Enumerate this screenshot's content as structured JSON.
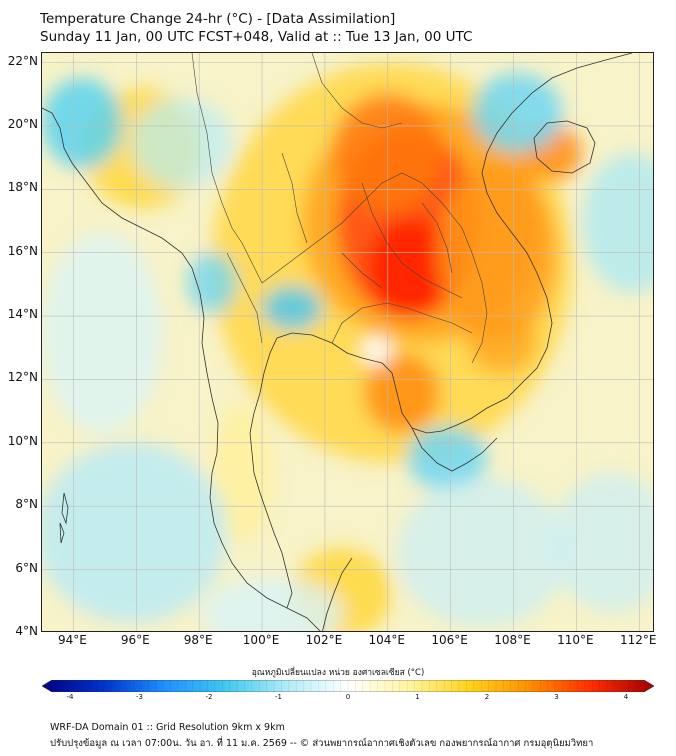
{
  "title": {
    "line1": "Temperature Change 24-hr (°C) - [Data Assimilation]",
    "line2": "Sunday 11 Jan, 00 UTC FCST+048, Valid at :: Tue 13 Jan, 00 UTC"
  },
  "map": {
    "lat_ticks": [
      "22°N",
      "20°N",
      "18°N",
      "16°N",
      "14°N",
      "12°N",
      "10°N",
      "8°N",
      "6°N",
      "4°N"
    ],
    "lon_ticks": [
      "94°E",
      "96°E",
      "98°E",
      "100°E",
      "102°E",
      "104°E",
      "106°E",
      "108°E",
      "110°E",
      "112°E"
    ],
    "lat_range": [
      4,
      22.3
    ],
    "lon_range": [
      93,
      112.5
    ],
    "background_color": "#f8f3c8"
  },
  "colorbar": {
    "title": "อุณหภูมิเปลี่ยนแปลง หน่วย องศาเซลเซียส (°C)",
    "ticks": [
      "-4",
      "-3",
      "-2",
      "-1",
      "0",
      "1",
      "2",
      "3",
      "4"
    ],
    "colors": [
      "#000080",
      "#0033cc",
      "#1e90ff",
      "#40c8f0",
      "#b0ecf8",
      "#ffffff",
      "#fff5a0",
      "#ffd21a",
      "#ff8c00",
      "#ff2a00",
      "#a00000"
    ]
  },
  "footer": {
    "line1": "WRF-DA Domain 01 :: Grid Resolution 9km x 9km",
    "line2": "ปรับปรุงข้อมูล ณ เวลา 07:00น. วัน อา. ที่ 11 ม.ค. 2569 -- © ส่วนพยากรณ์อากาศเชิงตัวเลข กองพยากรณ์อากาศ กรมอุตุนิยมวิทยา"
  }
}
